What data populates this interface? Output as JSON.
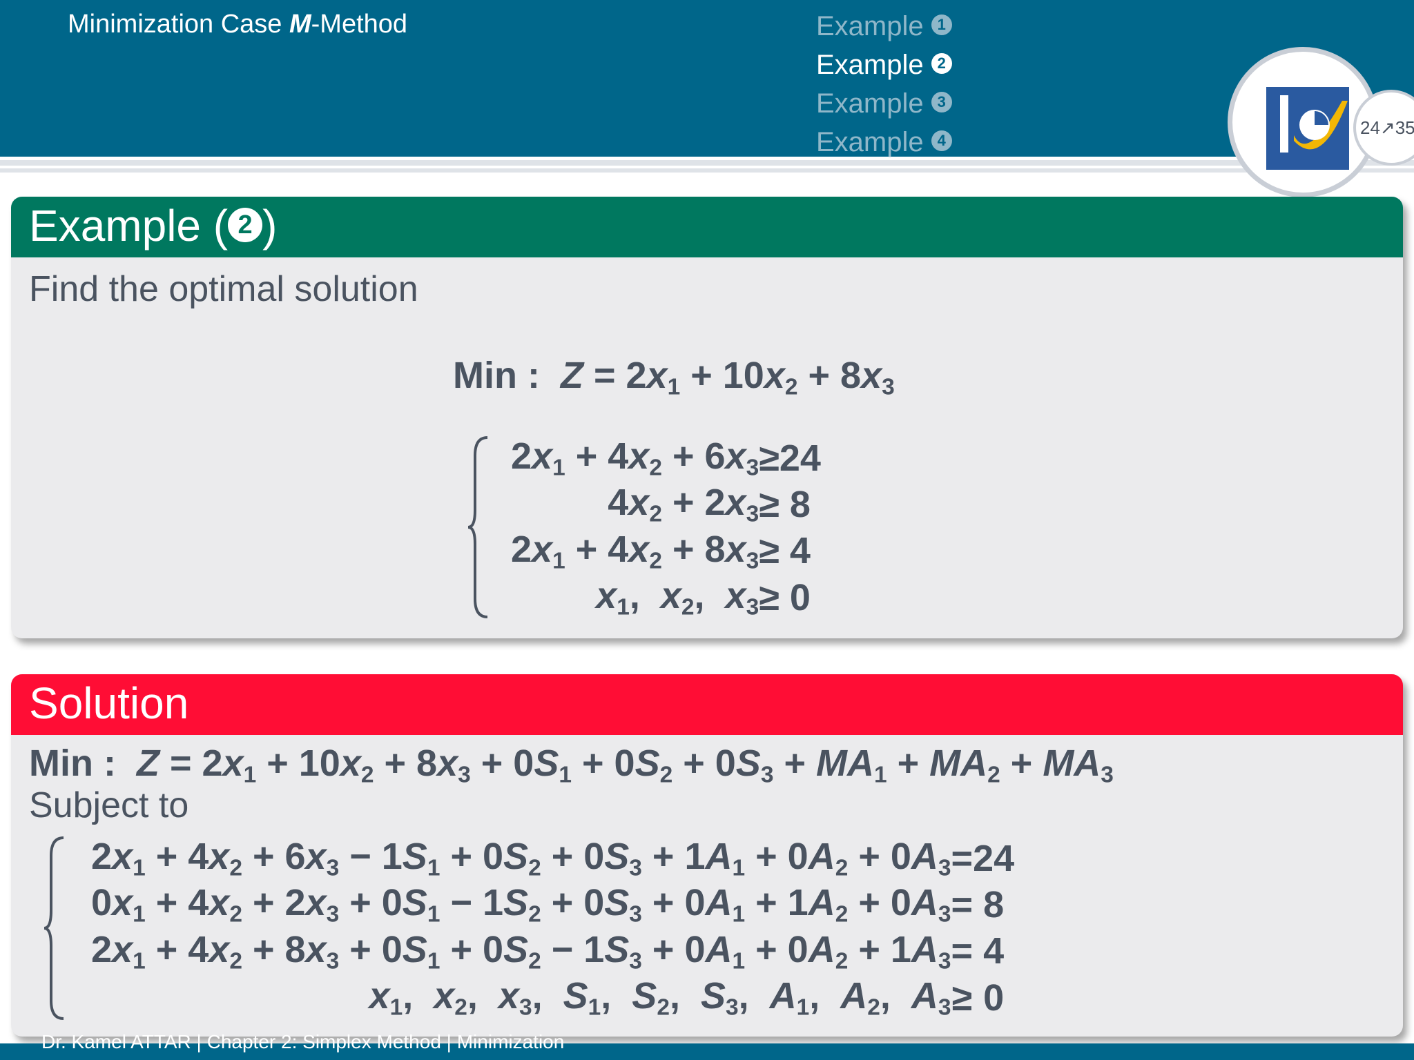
{
  "header": {
    "section_prefix": "Minimization Case ",
    "section_bold": "M",
    "section_suffix": "-Method",
    "nav": [
      {
        "label": "Example",
        "num": "1",
        "active": false
      },
      {
        "label": "Example",
        "num": "2",
        "active": true
      },
      {
        "label": "Example",
        "num": "3",
        "active": false
      },
      {
        "label": "Example",
        "num": "4",
        "active": false
      }
    ],
    "page_indicator": "24↗35"
  },
  "example_block": {
    "title_prefix": "Example (",
    "title_num": "2",
    "title_suffix": ")",
    "intro": "Find the optimal solution"
  },
  "solution_block": {
    "title": "Solution",
    "subject_to": "Subject to"
  },
  "footer": {
    "text": "Dr. Kamel ATTAR | Chapter 2: Simplex Method | Minimization"
  },
  "colors": {
    "header_bg": "#00668a",
    "example_header": "#00785f",
    "solution_header": "#ff0d35",
    "block_bg": "#ebebed",
    "text": "#4a5360"
  }
}
